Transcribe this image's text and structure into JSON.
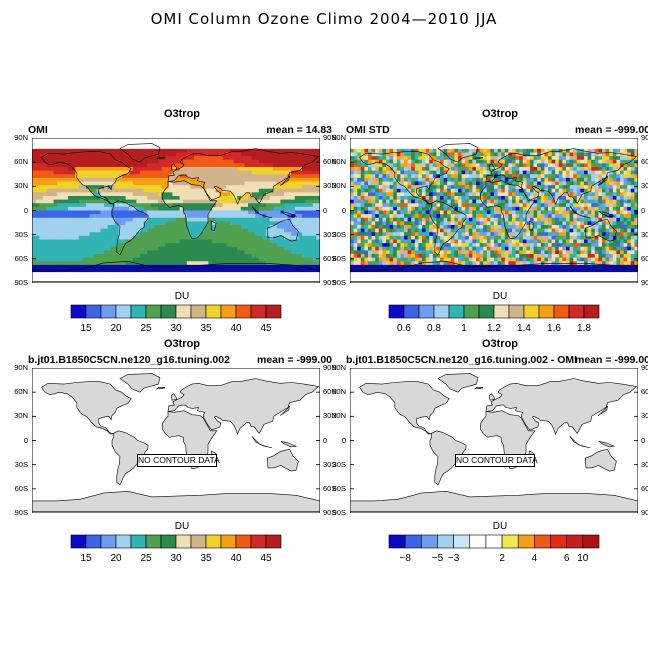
{
  "suptitle": "OMI Column Ozone Climo 2004—2010 JJA",
  "lat_ticks": [
    "90N",
    "60N",
    "30N",
    "0",
    "30S",
    "60S",
    "90S"
  ],
  "colorbar_unit": "DU",
  "panels": [
    {
      "title": "O3trop",
      "left": "OMI",
      "right": "mean =  14.83",
      "field": "smooth",
      "colorbar": {
        "ticks": [
          "15",
          "20",
          "25",
          "30",
          "35",
          "40",
          "45"
        ]
      }
    },
    {
      "title": "O3trop",
      "left": "OMI STD",
      "right": "mean = -999.00",
      "field": "noisy",
      "colorbar": {
        "ticks": [
          "0.6",
          "0.8",
          "1",
          "1.2",
          "1.4",
          "1.6",
          "1.8"
        ]
      }
    },
    {
      "title": "O3trop",
      "left": "b.jt01.B1850C5CN.ne120_g16.tuning.002",
      "right": "mean = -999.00",
      "field": "nodata",
      "nodata": "NO CONTOUR DATA",
      "colorbar": {
        "ticks": [
          "15",
          "20",
          "25",
          "30",
          "35",
          "40",
          "45"
        ]
      }
    },
    {
      "title": "O3trop",
      "left": "b.jt01.B1850C5CN.ne120_g16.tuning.002 - OMI",
      "right": "mean = -999.00",
      "field": "nodata",
      "nodata": "NO CONTOUR DATA",
      "colorbar": {
        "ticks": [
          "−8",
          "−5",
          "−3",
          "2",
          "4",
          "6",
          "10"
        ]
      }
    }
  ],
  "colors": {
    "scale": [
      "#0a0ac8",
      "#3c64e6",
      "#6e9cf0",
      "#a0d2f0",
      "#32b4b4",
      "#50a050",
      "#2a8a50",
      "#f0deb4",
      "#d2b48c",
      "#f0d228",
      "#f5a014",
      "#f05a14",
      "#d22828",
      "#b41e1e"
    ],
    "diff": [
      "#0a0ac8",
      "#3c64e6",
      "#6e9cf0",
      "#a0d2f0",
      "#c8e6f5",
      "#ffffff",
      "#ffffff",
      "#f5e650",
      "#f5a014",
      "#f05a14",
      "#e62814",
      "#c81e1e",
      "#aa1414"
    ],
    "land": "#d8d8d8",
    "band": "#0a0aa0"
  }
}
